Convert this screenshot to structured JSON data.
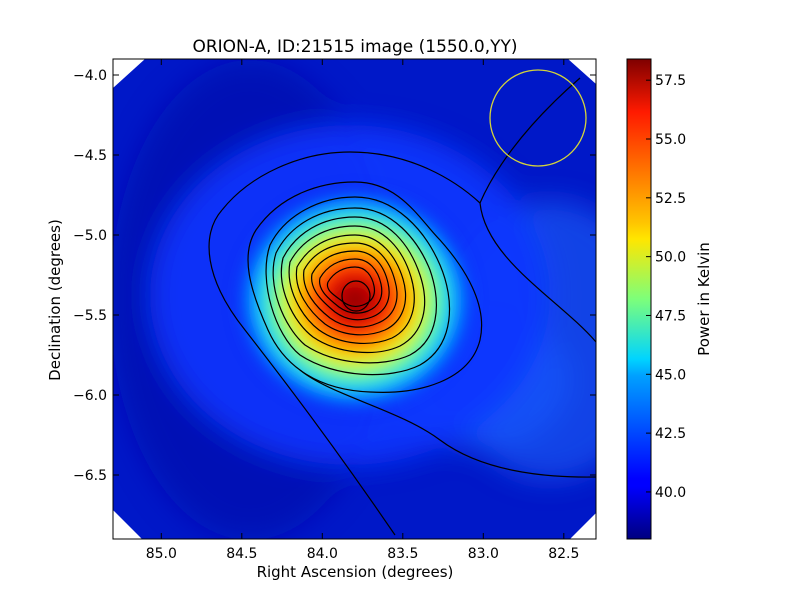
{
  "chart_data": {
    "type": "heatmap",
    "title": "ORION-A, ID:21515 image (1550.0,YY)",
    "xlabel": "Right Ascension (degrees)",
    "ylabel": "Declination (degrees)",
    "xlim": [
      85.3,
      82.3
    ],
    "ylim": [
      -6.9,
      -3.9
    ],
    "xticks": [
      85.0,
      84.5,
      84.0,
      83.5,
      83.0,
      82.5
    ],
    "xtick_labels": [
      "85.0",
      "84.5",
      "84.0",
      "83.5",
      "83.0",
      "82.5"
    ],
    "yticks": [
      -4.0,
      -4.5,
      -5.0,
      -5.5,
      -6.0,
      -6.5
    ],
    "ytick_labels": [
      "−4.0",
      "−4.5",
      "−5.0",
      "−5.5",
      "−6.0",
      "−6.5"
    ],
    "colormap": "jet",
    "colorbar": {
      "label": "Power in Kelvin",
      "min": 38.0,
      "max": 58.4,
      "ticks": [
        40.0,
        42.5,
        45.0,
        47.5,
        50.0,
        52.5,
        55.0,
        57.5
      ],
      "tick_labels": [
        "40.0",
        "42.5",
        "45.0",
        "47.5",
        "50.0",
        "52.5",
        "55.0",
        "57.5"
      ]
    },
    "peak": {
      "ra": 83.82,
      "dec": -5.37,
      "value": 58.3
    },
    "contour_color": "#000000",
    "beam_circle": {
      "ra": 82.68,
      "dec": -4.26,
      "radius_deg": 0.3,
      "color": "#d4d43a"
    }
  }
}
